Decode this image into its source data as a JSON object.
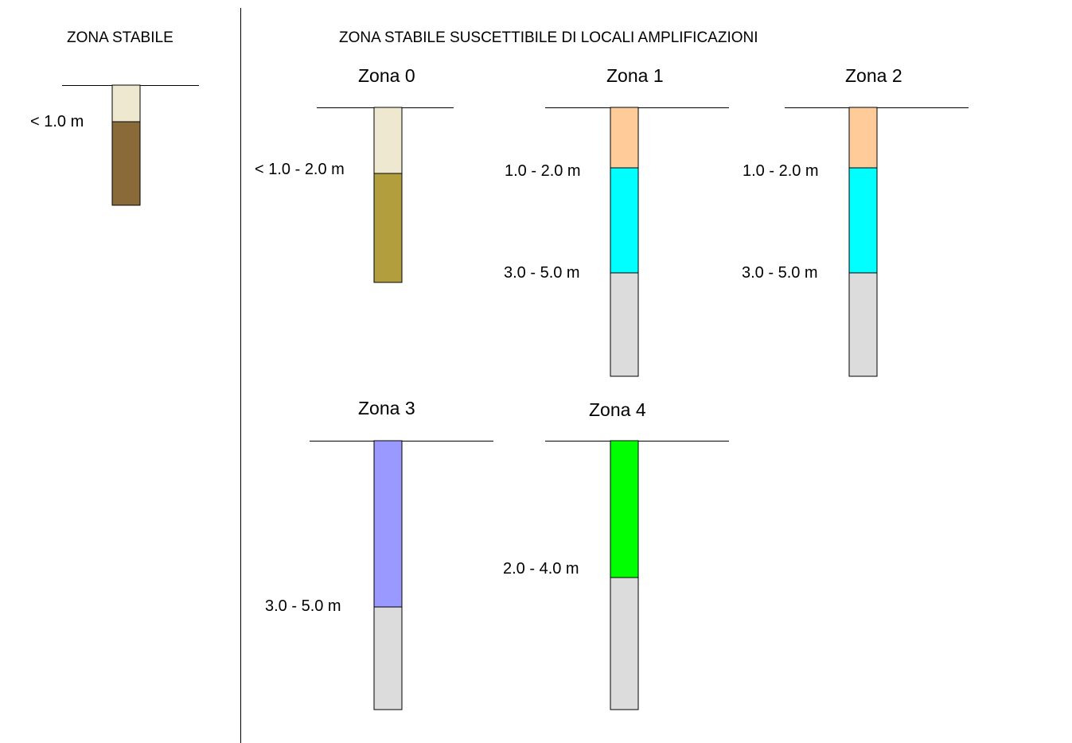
{
  "sections": {
    "stable": "ZONA STABILE",
    "amplification": "ZONA STABILE SUSCETTIBILE DI LOCALI AMPLIFICAZIONI"
  },
  "columns": {
    "stable": {
      "depth_labels": [
        "< 1.0  m"
      ],
      "colors": [
        "#efe8d0",
        "#8b6a3a"
      ]
    },
    "zona0": {
      "title": "Zona 0",
      "depth_labels": [
        "< 1.0 - 2.0 m"
      ],
      "colors": [
        "#efe8d0",
        "#b39e3e"
      ]
    },
    "zona1": {
      "title": "Zona 1",
      "depth_labels": [
        "1.0 - 2.0 m",
        "3.0 - 5.0 m"
      ],
      "colors": [
        "#ffcc99",
        "#00ffff",
        "#dcdcdc"
      ]
    },
    "zona2": {
      "title": "Zona 2",
      "depth_labels": [
        "1.0 - 2.0 m",
        "3.0 - 5.0 m"
      ],
      "colors": [
        "#ffcc99",
        "#00ffff",
        "#dcdcdc"
      ]
    },
    "zona3": {
      "title": "Zona 3",
      "depth_labels": [
        "3.0 - 5.0 m"
      ],
      "colors": [
        "#9999ff",
        "#dcdcdc"
      ]
    },
    "zona4": {
      "title": "Zona 4",
      "depth_labels": [
        "2.0 - 4.0 m"
      ],
      "colors": [
        "#00ff00",
        "#dcdcdc"
      ]
    }
  }
}
